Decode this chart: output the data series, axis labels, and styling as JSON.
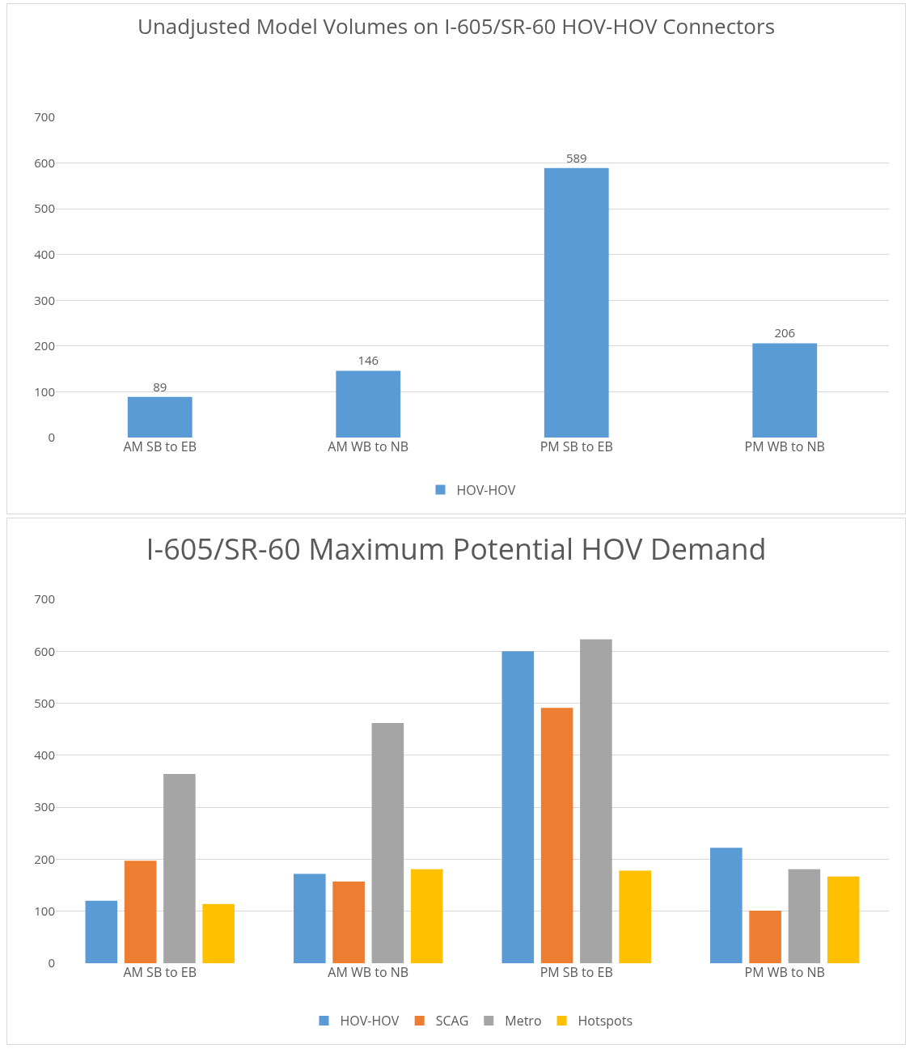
{
  "chart_data": [
    {
      "type": "bar",
      "title": "Unadjusted Model Volumes on I-605/SR-60 HOV-HOV Connectors",
      "categories": [
        "AM SB to EB",
        "AM WB to NB",
        "PM SB to EB",
        "PM WB to NB"
      ],
      "series": [
        {
          "name": "HOV-HOV",
          "color": "#5b9bd5",
          "values": [
            89,
            146,
            589,
            206
          ]
        }
      ],
      "ylim": [
        0,
        700
      ],
      "yticks": [
        0,
        100,
        200,
        300,
        400,
        500,
        600,
        700
      ],
      "grid": "y",
      "legend": "bottom",
      "data_labels": true
    },
    {
      "type": "bar",
      "title": "I-605/SR-60 Maximum Potential HOV Demand",
      "categories": [
        "AM SB to EB",
        "AM WB to NB",
        "PM SB to EB",
        "PM WB to NB"
      ],
      "series": [
        {
          "name": "HOV-HOV",
          "color": "#5b9bd5",
          "values": [
            120,
            172,
            600,
            222
          ]
        },
        {
          "name": "SCAG",
          "color": "#ed7d31",
          "values": [
            197,
            157,
            491,
            101
          ]
        },
        {
          "name": "Metro",
          "color": "#a5a5a5",
          "values": [
            364,
            462,
            623,
            181
          ]
        },
        {
          "name": "Hotspots",
          "color": "#ffc000",
          "values": [
            114,
            181,
            178,
            167
          ]
        }
      ],
      "ylim": [
        0,
        700
      ],
      "yticks": [
        0,
        100,
        200,
        300,
        400,
        500,
        600,
        700
      ],
      "grid": "y",
      "legend": "bottom"
    }
  ]
}
